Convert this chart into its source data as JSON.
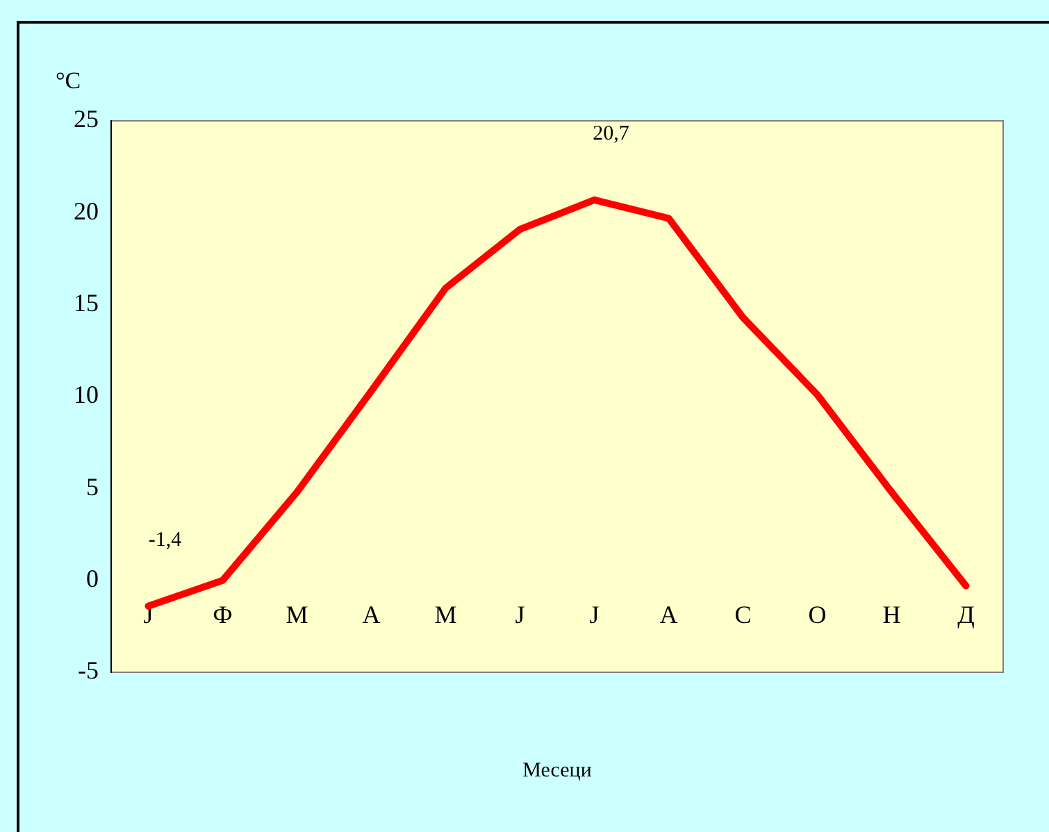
{
  "chart_data": {
    "type": "line",
    "xlabel": "Месеци",
    "ylabel": "°C",
    "categories": [
      "J",
      "Ф",
      "M",
      "A",
      "M",
      "J",
      "J",
      "A",
      "C",
      "O",
      "H",
      "Д"
    ],
    "series": [
      {
        "color": "#ff0000",
        "values": [
          -1.4,
          0,
          4.8,
          10.3,
          15.9,
          19.1,
          20.7,
          19.7,
          14.3,
          10.1,
          4.8,
          -0.3
        ],
        "value_labels": [
          "-1,4",
          null,
          null,
          null,
          null,
          null,
          "20,7",
          null,
          null,
          null,
          null,
          null
        ]
      }
    ],
    "ylim": [
      -5,
      25
    ],
    "yticks": [
      -5,
      0,
      5,
      10,
      15,
      20,
      25
    ],
    "grid": false,
    "legend": false,
    "marker": "none",
    "line_style": "solid"
  }
}
